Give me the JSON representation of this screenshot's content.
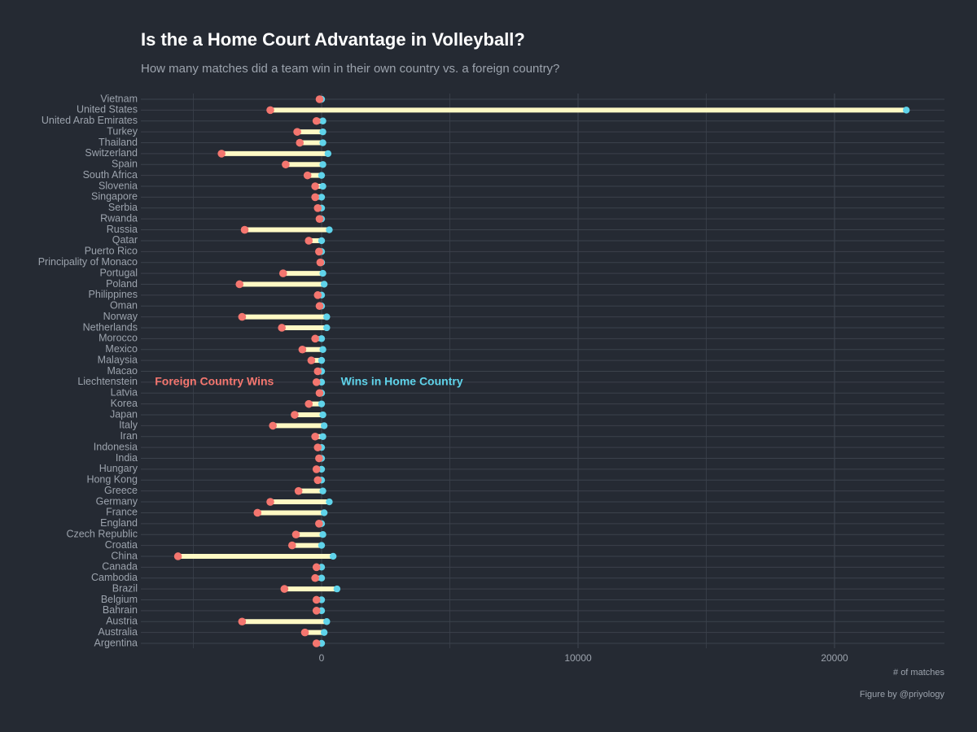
{
  "chart_data": {
    "type": "dumbbell",
    "title": "Is the a Home Court Advantage in Volleyball?",
    "subtitle": "How many matches did a team win in their own country vs. a foreign country?",
    "xlabel": "# of matches",
    "caption": "Figure by @priyology",
    "xlim": [
      -7000,
      24500
    ],
    "x_ticks": [
      0,
      10000,
      20000
    ],
    "grid": true,
    "colors": {
      "background": "#252a33",
      "foreign": "#f4766f",
      "home": "#5fd3ea",
      "segment": "#fff9c4",
      "grid": "#3c424c",
      "text": "#9ca3ad",
      "title": "#ffffff"
    },
    "annotations": {
      "foreign": {
        "text": "Foreign Country Wins",
        "country": "Liechtenstein",
        "x": -6500
      },
      "home": {
        "text": "Wins in Home Country",
        "country": "Liechtenstein",
        "x": 750
      }
    },
    "series": [
      {
        "name": "Foreign Country Wins",
        "encoding": "negative x"
      },
      {
        "name": "Wins in Home Country",
        "encoding": "positive x"
      }
    ],
    "countries": [
      "Vietnam",
      "United States",
      "United Arab Emirates",
      "Turkey",
      "Thailand",
      "Switzerland",
      "Spain",
      "South Africa",
      "Slovenia",
      "Singapore",
      "Serbia",
      "Rwanda",
      "Russia",
      "Qatar",
      "Puerto Rico",
      "Principality of Monaco",
      "Portugal",
      "Poland",
      "Philippines",
      "Oman",
      "Norway",
      "Netherlands",
      "Morocco",
      "Mexico",
      "Malaysia",
      "Macao",
      "Liechtenstein",
      "Latvia",
      "Korea",
      "Japan",
      "Italy",
      "Iran",
      "Indonesia",
      "India",
      "Hungary",
      "Hong Kong",
      "Greece",
      "Germany",
      "France",
      "England",
      "Czech Republic",
      "Croatia",
      "China",
      "Canada",
      "Cambodia",
      "Brazil",
      "Belgium",
      "Bahrain",
      "Austria",
      "Australia",
      "Argentina"
    ],
    "foreign_wins": [
      -80,
      -2000,
      -200,
      -950,
      -850,
      -3900,
      -1400,
      -550,
      -250,
      -250,
      -150,
      -80,
      -3000,
      -500,
      -100,
      -50,
      -1500,
      -3200,
      -150,
      -80,
      -3100,
      -1550,
      -250,
      -750,
      -400,
      -150,
      -200,
      -80,
      -500,
      -1050,
      -1900,
      -250,
      -150,
      -100,
      -200,
      -150,
      -900,
      -2000,
      -2500,
      -100,
      -1000,
      -1150,
      -5600,
      -200,
      -250,
      -1450,
      -200,
      -200,
      -3100,
      -650,
      -200
    ],
    "home_wins": [
      0,
      22800,
      50,
      50,
      50,
      250,
      50,
      0,
      50,
      0,
      0,
      0,
      300,
      0,
      0,
      0,
      50,
      100,
      0,
      0,
      200,
      200,
      0,
      50,
      0,
      0,
      0,
      0,
      0,
      50,
      100,
      50,
      0,
      0,
      0,
      0,
      50,
      300,
      100,
      0,
      50,
      0,
      450,
      0,
      0,
      600,
      0,
      0,
      200,
      100,
      0
    ]
  }
}
